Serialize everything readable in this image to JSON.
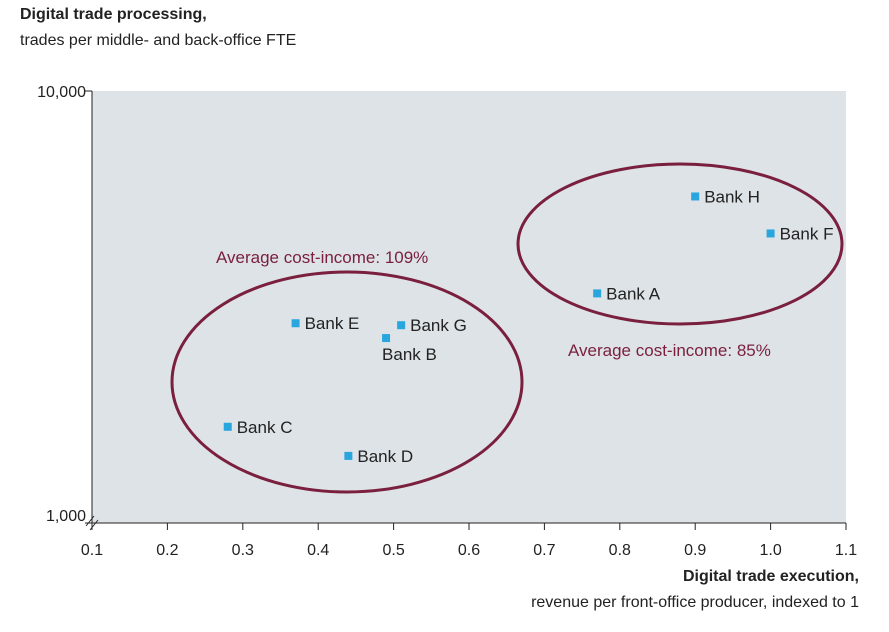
{
  "chart_data": {
    "type": "scatter",
    "ylabel_title": "Digital trade processing,",
    "ylabel_sub": "trades per middle- and back-office FTE",
    "xlabel_title": "Digital trade execution,",
    "xlabel_sub": "revenue per front-office producer, indexed to 1",
    "xlim": [
      0.1,
      1.1
    ],
    "ylim": [
      1000,
      10000
    ],
    "y_scale": "log",
    "x_ticks": [
      0.1,
      0.2,
      0.3,
      0.4,
      0.5,
      0.6,
      0.7,
      0.8,
      0.9,
      1.0,
      1.1
    ],
    "x_tick_labels": [
      "0.1",
      "0.2",
      "0.3",
      "0.4",
      "0.5",
      "0.6",
      "0.7",
      "0.8",
      "0.9",
      "1.0",
      "1.1"
    ],
    "y_ticks": [
      1000,
      10000
    ],
    "y_tick_labels": [
      "1,000",
      "10,000"
    ],
    "grid": false,
    "colors": {
      "point": "#2aa6df",
      "ellipse": "#7a1f3d",
      "plot_bg": "#dde3e7"
    },
    "points": [
      {
        "label": "Bank H",
        "x": 0.9,
        "y": 5700
      },
      {
        "label": "Bank F",
        "x": 1.0,
        "y": 4680
      },
      {
        "label": "Bank A",
        "x": 0.77,
        "y": 3400
      },
      {
        "label": "Bank E",
        "x": 0.37,
        "y": 2900
      },
      {
        "label": "Bank G",
        "x": 0.51,
        "y": 2870
      },
      {
        "label": "Bank B",
        "x": 0.49,
        "y": 2680
      },
      {
        "label": "Bank C",
        "x": 0.28,
        "y": 1670
      },
      {
        "label": "Bank D",
        "x": 0.44,
        "y": 1430
      }
    ],
    "annotations": [
      {
        "text": "Average cost-income: 109%",
        "group": [
          "Bank B",
          "Bank C",
          "Bank D",
          "Bank E",
          "Bank G"
        ]
      },
      {
        "text": "Average cost-income: 85%",
        "group": [
          "Bank A",
          "Bank F",
          "Bank H"
        ]
      }
    ]
  }
}
